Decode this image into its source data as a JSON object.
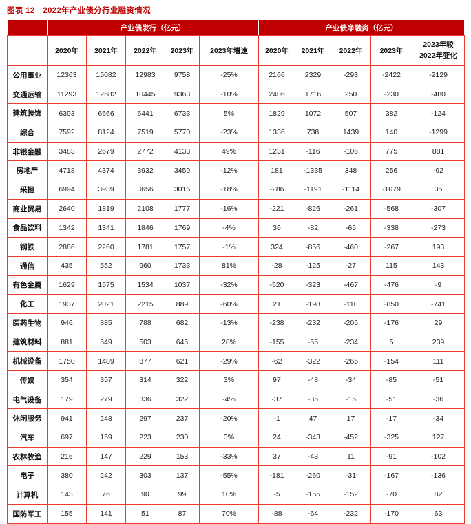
{
  "figure": {
    "title": "图表 12　2022年产业债分行业融资情况"
  },
  "colors": {
    "header_bg": "#c00000",
    "title": "#c00000",
    "grid_border": "#ee3a2c",
    "negative_value": "#e02222",
    "positive_value": "#1f1f1f"
  },
  "table": {
    "corner_label": "",
    "groups": [
      {
        "label": "产业债发行（亿元）"
      },
      {
        "label": "产业债净融资（亿元）"
      }
    ],
    "sub_headers": [
      "2020年",
      "2021年",
      "2022年",
      "2023年",
      "2023年增速",
      "2020年",
      "2021年",
      "2022年",
      "2023年",
      "2023年较\n2022年变化"
    ],
    "rows": [
      {
        "industry": "公用事业",
        "values": [
          "12363",
          "15082",
          "12983",
          "9758",
          "-25%",
          "2166",
          "2329",
          "-293",
          "-2422",
          "-2129"
        ]
      },
      {
        "industry": "交通运输",
        "values": [
          "11293",
          "12582",
          "10445",
          "9363",
          "-10%",
          "2406",
          "1716",
          "250",
          "-230",
          "-480"
        ]
      },
      {
        "industry": "建筑装饰",
        "values": [
          "6393",
          "6666",
          "6441",
          "6733",
          "5%",
          "1829",
          "1072",
          "507",
          "382",
          "-124"
        ]
      },
      {
        "industry": "综合",
        "values": [
          "7592",
          "8124",
          "7519",
          "5770",
          "-23%",
          "1336",
          "738",
          "1439",
          "140",
          "-1299"
        ]
      },
      {
        "industry": "非银金融",
        "values": [
          "3483",
          "2679",
          "2772",
          "4133",
          "49%",
          "1231",
          "-116",
          "-106",
          "775",
          "881"
        ]
      },
      {
        "industry": "房地产",
        "values": [
          "4718",
          "4374",
          "3932",
          "3459",
          "-12%",
          "181",
          "-1335",
          "348",
          "256",
          "-92"
        ]
      },
      {
        "industry": "采掘",
        "values": [
          "6994",
          "3939",
          "3656",
          "3016",
          "-18%",
          "-286",
          "-1191",
          "-1114",
          "-1079",
          "35"
        ]
      },
      {
        "industry": "商业贸易",
        "values": [
          "2640",
          "1819",
          "2108",
          "1777",
          "-16%",
          "-221",
          "-826",
          "-261",
          "-568",
          "-307"
        ]
      },
      {
        "industry": "食品饮料",
        "values": [
          "1342",
          "1341",
          "1846",
          "1769",
          "-4%",
          "36",
          "-82",
          "-65",
          "-338",
          "-273"
        ]
      },
      {
        "industry": "钢铁",
        "values": [
          "2886",
          "2260",
          "1781",
          "1757",
          "-1%",
          "324",
          "-856",
          "-460",
          "-267",
          "193"
        ]
      },
      {
        "industry": "通信",
        "values": [
          "435",
          "552",
          "960",
          "1733",
          "81%",
          "-28",
          "-125",
          "-27",
          "115",
          "143"
        ]
      },
      {
        "industry": "有色金属",
        "values": [
          "1629",
          "1575",
          "1534",
          "1037",
          "-32%",
          "-520",
          "-323",
          "-467",
          "-476",
          "-9"
        ]
      },
      {
        "industry": "化工",
        "values": [
          "1937",
          "2021",
          "2215",
          "889",
          "-60%",
          "21",
          "-198",
          "-110",
          "-850",
          "-741"
        ]
      },
      {
        "industry": "医药生物",
        "values": [
          "946",
          "885",
          "788",
          "682",
          "-13%",
          "-238",
          "-232",
          "-205",
          "-176",
          "29"
        ]
      },
      {
        "industry": "建筑材料",
        "values": [
          "881",
          "649",
          "503",
          "646",
          "28%",
          "-155",
          "-55",
          "-234",
          "5",
          "239"
        ]
      },
      {
        "industry": "机械设备",
        "values": [
          "1750",
          "1489",
          "877",
          "621",
          "-29%",
          "-62",
          "-322",
          "-265",
          "-154",
          "111"
        ]
      },
      {
        "industry": "传媒",
        "values": [
          "354",
          "357",
          "314",
          "322",
          "3%",
          "97",
          "-48",
          "-34",
          "-85",
          "-51"
        ]
      },
      {
        "industry": "电气设备",
        "values": [
          "179",
          "279",
          "336",
          "322",
          "-4%",
          "-37",
          "-35",
          "-15",
          "-51",
          "-36"
        ]
      },
      {
        "industry": "休闲服务",
        "values": [
          "941",
          "248",
          "297",
          "237",
          "-20%",
          "-1",
          "47",
          "17",
          "-17",
          "-34"
        ]
      },
      {
        "industry": "汽车",
        "values": [
          "697",
          "159",
          "223",
          "230",
          "3%",
          "24",
          "-343",
          "-452",
          "-325",
          "127"
        ]
      },
      {
        "industry": "农林牧渔",
        "values": [
          "216",
          "147",
          "229",
          "153",
          "-33%",
          "37",
          "-43",
          "11",
          "-91",
          "-102"
        ]
      },
      {
        "industry": "电子",
        "values": [
          "380",
          "242",
          "303",
          "137",
          "-55%",
          "-181",
          "-260",
          "-31",
          "-167",
          "-136"
        ]
      },
      {
        "industry": "计算机",
        "values": [
          "143",
          "76",
          "90",
          "99",
          "10%",
          "-5",
          "-155",
          "-152",
          "-70",
          "82"
        ]
      },
      {
        "industry": "国防军工",
        "values": [
          "155",
          "141",
          "51",
          "87",
          "70%",
          "-88",
          "-64",
          "-232",
          "-170",
          "63"
        ]
      }
    ]
  }
}
